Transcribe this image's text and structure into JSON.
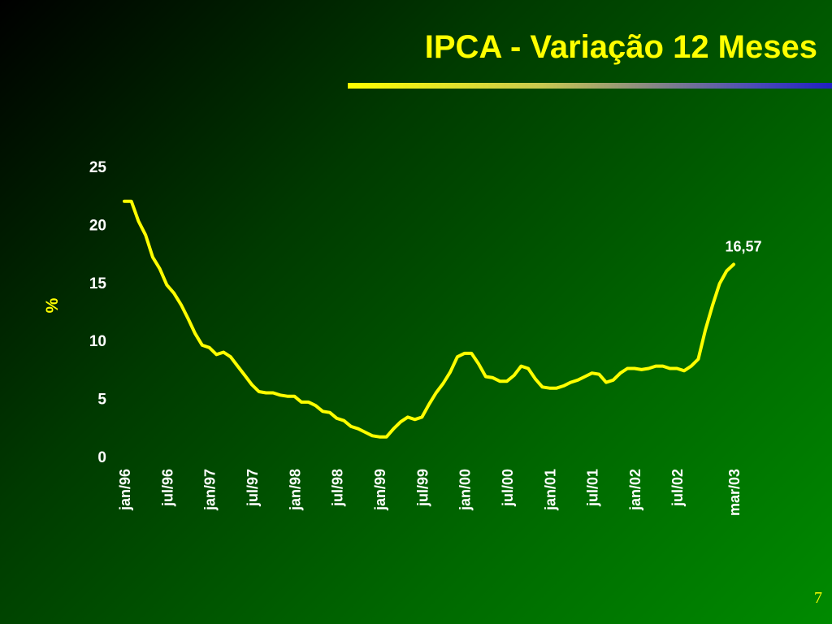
{
  "slide": {
    "title": "IPCA - Variação 12 Meses",
    "page_number": "7"
  },
  "colors": {
    "title": "#ffff00",
    "line": "#ffff00",
    "axis_text": "#ffffff",
    "ylabel": "#ffff00"
  },
  "chart_data": {
    "type": "line",
    "title": "",
    "xlabel": "",
    "ylabel": "%",
    "ylim": [
      0,
      25
    ],
    "yticks": [
      0,
      5,
      10,
      15,
      20,
      25
    ],
    "grid": false,
    "legend": "none",
    "x_tick_labels": [
      "jan/96",
      "jul/96",
      "jan/97",
      "jul/97",
      "jan/98",
      "jul/98",
      "jan/99",
      "jul/99",
      "jan/00",
      "jul/00",
      "jan/01",
      "jul/01",
      "jan/02",
      "jul/02",
      "mar/03"
    ],
    "series": [
      {
        "x": [
          "jan/96",
          "fev/96",
          "mar/96",
          "abr/96",
          "mai/96",
          "jun/96",
          "jul/96",
          "ago/96",
          "set/96",
          "out/96",
          "nov/96",
          "dez/96",
          "jan/97",
          "fev/97",
          "mar/97",
          "abr/97",
          "mai/97",
          "jun/97",
          "jul/97",
          "ago/97",
          "set/97",
          "out/97",
          "nov/97",
          "dez/97",
          "jan/98",
          "fev/98",
          "mar/98",
          "abr/98",
          "mai/98",
          "jun/98",
          "jul/98",
          "ago/98",
          "set/98",
          "out/98",
          "nov/98",
          "dez/98",
          "jan/99",
          "fev/99",
          "mar/99",
          "abr/99",
          "mai/99",
          "jun/99",
          "jul/99",
          "ago/99",
          "set/99",
          "out/99",
          "nov/99",
          "dez/99",
          "jan/00",
          "fev/00",
          "mar/00",
          "abr/00",
          "mai/00",
          "jun/00",
          "jul/00",
          "ago/00",
          "set/00",
          "out/00",
          "nov/00",
          "dez/00",
          "jan/01",
          "fev/01",
          "mar/01",
          "abr/01",
          "mai/01",
          "jun/01",
          "jul/01",
          "ago/01",
          "set/01",
          "out/01",
          "nov/01",
          "dez/01",
          "jan/02",
          "fev/02",
          "mar/02",
          "abr/02",
          "mai/02",
          "jun/02",
          "jul/02",
          "ago/02",
          "set/02",
          "out/02",
          "nov/02",
          "dez/02",
          "jan/03",
          "fev/03",
          "mar/03"
        ],
        "values": [
          22.0,
          22.0,
          20.3,
          19.1,
          17.2,
          16.2,
          14.8,
          14.1,
          13.1,
          11.9,
          10.6,
          9.6,
          9.4,
          8.8,
          9.0,
          8.6,
          7.8,
          7.0,
          6.2,
          5.6,
          5.5,
          5.5,
          5.3,
          5.2,
          5.2,
          4.7,
          4.7,
          4.4,
          3.9,
          3.8,
          3.3,
          3.1,
          2.6,
          2.4,
          2.1,
          1.8,
          1.7,
          1.7,
          2.4,
          3.0,
          3.4,
          3.2,
          3.4,
          4.5,
          5.5,
          6.3,
          7.3,
          8.6,
          8.9,
          8.9,
          8.0,
          6.9,
          6.8,
          6.5,
          6.5,
          7.0,
          7.8,
          7.6,
          6.7,
          6.0,
          5.9,
          5.9,
          6.1,
          6.4,
          6.6,
          6.9,
          7.2,
          7.1,
          6.4,
          6.6,
          7.2,
          7.6,
          7.6,
          7.5,
          7.6,
          7.8,
          7.8,
          7.6,
          7.6,
          7.4,
          7.8,
          8.4,
          10.9,
          13.0,
          14.9,
          16.0,
          16.57
        ]
      }
    ],
    "annotation": {
      "text": "16,57",
      "x": "mar/03",
      "y": 16.57
    }
  }
}
